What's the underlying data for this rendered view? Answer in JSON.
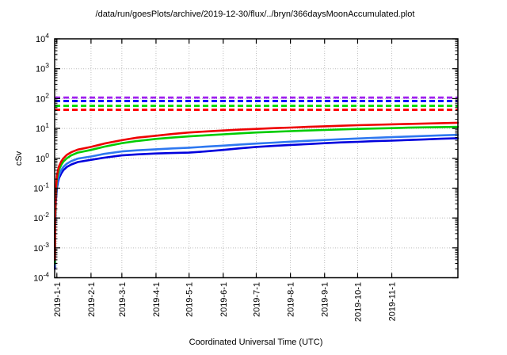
{
  "chart_data": {
    "type": "line",
    "title": "/data/run/goesPlots/archive/2019-12-30/flux/../bryn/366daysMoonAccumulated.plot",
    "xlabel": "Coordinated Universal Time (UTC)",
    "ylabel": "cSv",
    "legend": "none",
    "grid": true,
    "x_axis": {
      "scale": "linear-days",
      "range_days": [
        0,
        366
      ],
      "tick_labels": [
        "2019-1-1",
        "2019-2-1",
        "2019-3-1",
        "2019-4-1",
        "2019-5-1",
        "2019-6-1",
        "2019-7-1",
        "2019-8-1",
        "2019-9-1",
        "2019-10-1",
        "2019-11-1"
      ],
      "tick_days": [
        2,
        33,
        61,
        92,
        122,
        153,
        183,
        214,
        245,
        275,
        306
      ]
    },
    "y_axis": {
      "scale": "log",
      "limits": [
        0.0001,
        10000
      ],
      "tick_exponents": [
        4,
        3,
        2,
        1,
        0,
        -1,
        -2,
        -3,
        -4
      ]
    },
    "threshold_lines": [
      {
        "name": "limit-red-dashed",
        "value": 42,
        "color": "#ff0000",
        "style": "dashed"
      },
      {
        "name": "limit-green-dashed",
        "value": 57,
        "color": "#00dd00",
        "style": "dashed"
      },
      {
        "name": "limit-blue-dashed",
        "value": 83,
        "color": "#0000ff",
        "style": "dashed"
      },
      {
        "name": "limit-purple-dashed",
        "value": 108,
        "color": "#a020f0",
        "style": "dashed"
      }
    ],
    "series": [
      {
        "name": "accumulated-dose-darkblue",
        "color": "#0000dd",
        "points": [
          [
            0.2,
            0.0002
          ],
          [
            0.5,
            0.005
          ],
          [
            1,
            0.035
          ],
          [
            2,
            0.1
          ],
          [
            3,
            0.16
          ],
          [
            4,
            0.22
          ],
          [
            6,
            0.31
          ],
          [
            8,
            0.4
          ],
          [
            11,
            0.51
          ],
          [
            15,
            0.62
          ],
          [
            21,
            0.75
          ],
          [
            33,
            0.89
          ],
          [
            45,
            1.05
          ],
          [
            61,
            1.25
          ],
          [
            75,
            1.35
          ],
          [
            92,
            1.45
          ],
          [
            107,
            1.5
          ],
          [
            122,
            1.55
          ],
          [
            137,
            1.7
          ],
          [
            153,
            1.9
          ],
          [
            168,
            2.15
          ],
          [
            183,
            2.4
          ],
          [
            199,
            2.6
          ],
          [
            214,
            2.8
          ],
          [
            230,
            3.0
          ],
          [
            245,
            3.2
          ],
          [
            260,
            3.4
          ],
          [
            275,
            3.55
          ],
          [
            290,
            3.75
          ],
          [
            306,
            3.9
          ],
          [
            321,
            4.1
          ],
          [
            336,
            4.3
          ],
          [
            351,
            4.5
          ],
          [
            366,
            4.7
          ]
        ]
      },
      {
        "name": "accumulated-dose-lightblue",
        "color": "#2e78f0",
        "points": [
          [
            0.2,
            0.00025
          ],
          [
            0.5,
            0.006
          ],
          [
            1,
            0.045
          ],
          [
            2,
            0.13
          ],
          [
            3,
            0.2
          ],
          [
            4,
            0.28
          ],
          [
            6,
            0.4
          ],
          [
            8,
            0.52
          ],
          [
            11,
            0.66
          ],
          [
            15,
            0.8
          ],
          [
            21,
            0.97
          ],
          [
            33,
            1.15
          ],
          [
            45,
            1.4
          ],
          [
            61,
            1.7
          ],
          [
            75,
            1.85
          ],
          [
            92,
            2.0
          ],
          [
            107,
            2.14
          ],
          [
            122,
            2.26
          ],
          [
            137,
            2.45
          ],
          [
            153,
            2.65
          ],
          [
            168,
            2.88
          ],
          [
            183,
            3.1
          ],
          [
            199,
            3.35
          ],
          [
            214,
            3.6
          ],
          [
            230,
            3.85
          ],
          [
            245,
            4.1
          ],
          [
            260,
            4.35
          ],
          [
            275,
            4.6
          ],
          [
            290,
            4.85
          ],
          [
            306,
            5.1
          ],
          [
            321,
            5.35
          ],
          [
            336,
            5.6
          ],
          [
            351,
            5.85
          ],
          [
            366,
            6.1
          ]
        ]
      },
      {
        "name": "accumulated-dose-green",
        "color": "#00cc00",
        "points": [
          [
            0.2,
            0.0003
          ],
          [
            0.5,
            0.008
          ],
          [
            1,
            0.06
          ],
          [
            2,
            0.19
          ],
          [
            3,
            0.31
          ],
          [
            4,
            0.42
          ],
          [
            6,
            0.6
          ],
          [
            8,
            0.78
          ],
          [
            11,
            1.0
          ],
          [
            15,
            1.25
          ],
          [
            21,
            1.55
          ],
          [
            33,
            1.9
          ],
          [
            45,
            2.45
          ],
          [
            61,
            3.2
          ],
          [
            75,
            3.8
          ],
          [
            92,
            4.45
          ],
          [
            107,
            4.95
          ],
          [
            122,
            5.4
          ],
          [
            137,
            5.85
          ],
          [
            153,
            6.35
          ],
          [
            168,
            6.85
          ],
          [
            183,
            7.3
          ],
          [
            199,
            7.7
          ],
          [
            214,
            8.1
          ],
          [
            230,
            8.5
          ],
          [
            245,
            8.9
          ],
          [
            260,
            9.25
          ],
          [
            275,
            9.6
          ],
          [
            290,
            9.9
          ],
          [
            306,
            10.2
          ],
          [
            321,
            10.6
          ],
          [
            336,
            10.9
          ],
          [
            351,
            11.1
          ],
          [
            366,
            11.3
          ]
        ]
      },
      {
        "name": "accumulated-dose-red",
        "color": "#ee0000",
        "points": [
          [
            0.2,
            0.0004
          ],
          [
            0.5,
            0.01
          ],
          [
            1,
            0.08
          ],
          [
            2,
            0.25
          ],
          [
            3,
            0.4
          ],
          [
            4,
            0.55
          ],
          [
            6,
            0.78
          ],
          [
            8,
            1.0
          ],
          [
            11,
            1.3
          ],
          [
            15,
            1.6
          ],
          [
            21,
            1.95
          ],
          [
            33,
            2.4
          ],
          [
            45,
            3.1
          ],
          [
            61,
            4.05
          ],
          [
            75,
            4.9
          ],
          [
            92,
            5.7
          ],
          [
            107,
            6.5
          ],
          [
            122,
            7.3
          ],
          [
            137,
            7.9
          ],
          [
            153,
            8.5
          ],
          [
            168,
            9.1
          ],
          [
            183,
            9.6
          ],
          [
            199,
            10.2
          ],
          [
            214,
            10.7
          ],
          [
            230,
            11.3
          ],
          [
            245,
            11.8
          ],
          [
            260,
            12.3
          ],
          [
            275,
            12.8
          ],
          [
            290,
            13.2
          ],
          [
            306,
            13.7
          ],
          [
            321,
            14.1
          ],
          [
            336,
            14.6
          ],
          [
            351,
            15.0
          ],
          [
            366,
            15.5
          ]
        ]
      }
    ]
  }
}
